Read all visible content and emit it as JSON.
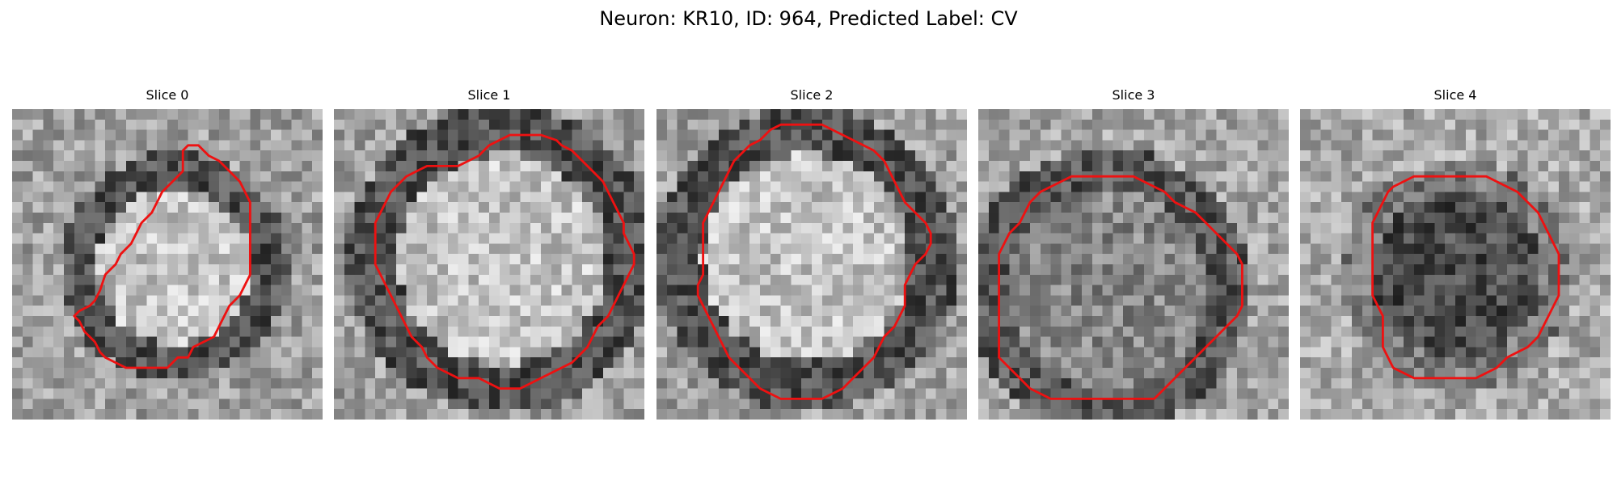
{
  "figure": {
    "title": "Neuron: KR10, ID: 964, Predicted Label: CV"
  },
  "panels": [
    {
      "title": "Slice 0",
      "brightness": "bright-center",
      "outline": [
        [
          16.5,
          4
        ],
        [
          17,
          3.5
        ],
        [
          18,
          3.5
        ],
        [
          18.5,
          4
        ],
        [
          19,
          4.5
        ],
        [
          20,
          5
        ],
        [
          21,
          6
        ],
        [
          22,
          7
        ],
        [
          22.5,
          8
        ],
        [
          23,
          9
        ],
        [
          23,
          10
        ],
        [
          23,
          11
        ],
        [
          23,
          12
        ],
        [
          23,
          13
        ],
        [
          23,
          14
        ],
        [
          23,
          15
        ],
        [
          23,
          16
        ],
        [
          22.5,
          17
        ],
        [
          22,
          18
        ],
        [
          21,
          19
        ],
        [
          20.5,
          20
        ],
        [
          20,
          21
        ],
        [
          19.5,
          22
        ],
        [
          18.5,
          22.5
        ],
        [
          17.5,
          23
        ],
        [
          17,
          24
        ],
        [
          16,
          24
        ],
        [
          15,
          25
        ],
        [
          14,
          25
        ],
        [
          13,
          25
        ],
        [
          12,
          25
        ],
        [
          11,
          25
        ],
        [
          10,
          24.5
        ],
        [
          9,
          24
        ],
        [
          8.5,
          23.5
        ],
        [
          8,
          22.5
        ],
        [
          7,
          21.5
        ],
        [
          6.5,
          20.5
        ],
        [
          6,
          20
        ],
        [
          6.5,
          19.5
        ],
        [
          7.5,
          19
        ],
        [
          8,
          18.5
        ],
        [
          8.5,
          17.5
        ],
        [
          9,
          16
        ],
        [
          10,
          15
        ],
        [
          10.5,
          14
        ],
        [
          11.5,
          13
        ],
        [
          12,
          12
        ],
        [
          12.5,
          11
        ],
        [
          13.5,
          10
        ],
        [
          14,
          9
        ],
        [
          14.5,
          8
        ],
        [
          15.5,
          7
        ],
        [
          16.5,
          6
        ],
        [
          16.5,
          5
        ]
      ],
      "seed": 11
    },
    {
      "title": "Slice 1",
      "brightness": "bright-center",
      "outline": [
        [
          17,
          2.5
        ],
        [
          18,
          2.5
        ],
        [
          19,
          2.5
        ],
        [
          20,
          2.5
        ],
        [
          21.5,
          3
        ],
        [
          22,
          3.5
        ],
        [
          23,
          4
        ],
        [
          24,
          5
        ],
        [
          25,
          6
        ],
        [
          26,
          7
        ],
        [
          26.5,
          8
        ],
        [
          27,
          9
        ],
        [
          27.5,
          10
        ],
        [
          28,
          11
        ],
        [
          28,
          12
        ],
        [
          28.5,
          13
        ],
        [
          29,
          14
        ],
        [
          29,
          15
        ],
        [
          28.5,
          16
        ],
        [
          28,
          17
        ],
        [
          27.5,
          18
        ],
        [
          27,
          19
        ],
        [
          26.5,
          20
        ],
        [
          25.5,
          21
        ],
        [
          25,
          22
        ],
        [
          24.5,
          23
        ],
        [
          23.5,
          24
        ],
        [
          23,
          24.5
        ],
        [
          22,
          25
        ],
        [
          21,
          25.5
        ],
        [
          20,
          26
        ],
        [
          19,
          26.5
        ],
        [
          18,
          27
        ],
        [
          17,
          27
        ],
        [
          16,
          27
        ],
        [
          15,
          26.5
        ],
        [
          14,
          26
        ],
        [
          13,
          26
        ],
        [
          12,
          26
        ],
        [
          11,
          25.5
        ],
        [
          10,
          25
        ],
        [
          9,
          24
        ],
        [
          8.5,
          23
        ],
        [
          7.5,
          22
        ],
        [
          7,
          21
        ],
        [
          6.5,
          20
        ],
        [
          6,
          19
        ],
        [
          5.5,
          18
        ],
        [
          5,
          17
        ],
        [
          4.5,
          16
        ],
        [
          4,
          15
        ],
        [
          4,
          14
        ],
        [
          4,
          13
        ],
        [
          4,
          12
        ],
        [
          4,
          11
        ],
        [
          4.5,
          10
        ],
        [
          5,
          9
        ],
        [
          5.5,
          8
        ],
        [
          6.5,
          7
        ],
        [
          7,
          6.5
        ],
        [
          8,
          6
        ],
        [
          9,
          5.5
        ],
        [
          10,
          5.5
        ],
        [
          11,
          5.5
        ],
        [
          12,
          5.5
        ],
        [
          13,
          5
        ],
        [
          14,
          4.5
        ],
        [
          15,
          3.5
        ],
        [
          16,
          3
        ]
      ],
      "seed": 23
    },
    {
      "title": "Slice 2",
      "brightness": "bright-center",
      "outline": [
        [
          11,
          2
        ],
        [
          12,
          1.5
        ],
        [
          13,
          1.5
        ],
        [
          14,
          1.5
        ],
        [
          15,
          1.5
        ],
        [
          16,
          1.5
        ],
        [
          17,
          2
        ],
        [
          18,
          2.5
        ],
        [
          19,
          3
        ],
        [
          20,
          3.5
        ],
        [
          21,
          4
        ],
        [
          22,
          5
        ],
        [
          22.5,
          6
        ],
        [
          23,
          7
        ],
        [
          23.5,
          8
        ],
        [
          24,
          9
        ],
        [
          25,
          10
        ],
        [
          26,
          11
        ],
        [
          26.5,
          12
        ],
        [
          26.5,
          13
        ],
        [
          26,
          14
        ],
        [
          25,
          15
        ],
        [
          24.5,
          16
        ],
        [
          24,
          17
        ],
        [
          24,
          18
        ],
        [
          24,
          19
        ],
        [
          23.5,
          20
        ],
        [
          23,
          21
        ],
        [
          22,
          22
        ],
        [
          21.5,
          23
        ],
        [
          21,
          24
        ],
        [
          20,
          25
        ],
        [
          19,
          26
        ],
        [
          18,
          27
        ],
        [
          17,
          27.5
        ],
        [
          16,
          28
        ],
        [
          15,
          28
        ],
        [
          14,
          28
        ],
        [
          13,
          28
        ],
        [
          12,
          28
        ],
        [
          11,
          27.5
        ],
        [
          10,
          27
        ],
        [
          9,
          26
        ],
        [
          8,
          25
        ],
        [
          7,
          24
        ],
        [
          6.5,
          23
        ],
        [
          6,
          22
        ],
        [
          5.5,
          21
        ],
        [
          5,
          20
        ],
        [
          4.5,
          19
        ],
        [
          4,
          18
        ],
        [
          4,
          17
        ],
        [
          4.5,
          16
        ],
        [
          4.5,
          15
        ],
        [
          4.5,
          14
        ],
        [
          4.5,
          13
        ],
        [
          4.5,
          12
        ],
        [
          4.5,
          11
        ],
        [
          5,
          10
        ],
        [
          5.5,
          9
        ],
        [
          6,
          8
        ],
        [
          6.5,
          7
        ],
        [
          7,
          6
        ],
        [
          7.5,
          5
        ],
        [
          8.5,
          4
        ],
        [
          9,
          3.5
        ],
        [
          10,
          3
        ]
      ],
      "seed": 37
    },
    {
      "title": "Slice 3",
      "brightness": "mid",
      "outline": [
        [
          9,
          6.5
        ],
        [
          10,
          6.5
        ],
        [
          11,
          6.5
        ],
        [
          12,
          6.5
        ],
        [
          13,
          6.5
        ],
        [
          14,
          6.5
        ],
        [
          15,
          6.5
        ],
        [
          16,
          7
        ],
        [
          17,
          7.5
        ],
        [
          18,
          8
        ],
        [
          19,
          9
        ],
        [
          20,
          9.5
        ],
        [
          21,
          10
        ],
        [
          22,
          11
        ],
        [
          23,
          12
        ],
        [
          24,
          13
        ],
        [
          25,
          14
        ],
        [
          25.5,
          15
        ],
        [
          25.5,
          16
        ],
        [
          25.5,
          17
        ],
        [
          25.5,
          18
        ],
        [
          25.5,
          19
        ],
        [
          25,
          20
        ],
        [
          24,
          21
        ],
        [
          23,
          22
        ],
        [
          22,
          23
        ],
        [
          21,
          24
        ],
        [
          20,
          25
        ],
        [
          19,
          26
        ],
        [
          18,
          27
        ],
        [
          17,
          28
        ],
        [
          16,
          28
        ],
        [
          15,
          28
        ],
        [
          14,
          28
        ],
        [
          13,
          28
        ],
        [
          12,
          28
        ],
        [
          11,
          28
        ],
        [
          10,
          28
        ],
        [
          9,
          28
        ],
        [
          8,
          28
        ],
        [
          7,
          28
        ],
        [
          6,
          27.5
        ],
        [
          5,
          27
        ],
        [
          4,
          26
        ],
        [
          3,
          25
        ],
        [
          2,
          24
        ],
        [
          2,
          23
        ],
        [
          2,
          22
        ],
        [
          2,
          21
        ],
        [
          2,
          20
        ],
        [
          2,
          19
        ],
        [
          2,
          18
        ],
        [
          2,
          17
        ],
        [
          2,
          16
        ],
        [
          2,
          15
        ],
        [
          2,
          14
        ],
        [
          2.5,
          13
        ],
        [
          3,
          12
        ],
        [
          4,
          11
        ],
        [
          4.5,
          10
        ],
        [
          5,
          9
        ],
        [
          6,
          8
        ],
        [
          7,
          7.5
        ],
        [
          8,
          7
        ]
      ],
      "seed": 53
    },
    {
      "title": "Slice 4",
      "brightness": "dark-center",
      "outline": [
        [
          11,
          6.5
        ],
        [
          12,
          6.5
        ],
        [
          13,
          6.5
        ],
        [
          14,
          6.5
        ],
        [
          15,
          6.5
        ],
        [
          16,
          6.5
        ],
        [
          17,
          6.5
        ],
        [
          18,
          6.5
        ],
        [
          19,
          7
        ],
        [
          20,
          7.5
        ],
        [
          21,
          8
        ],
        [
          22,
          9
        ],
        [
          23,
          10
        ],
        [
          23.5,
          11
        ],
        [
          24,
          12
        ],
        [
          24.5,
          13
        ],
        [
          25,
          14
        ],
        [
          25,
          15
        ],
        [
          25,
          16
        ],
        [
          25,
          17
        ],
        [
          25,
          18
        ],
        [
          24.5,
          19
        ],
        [
          24,
          20
        ],
        [
          23.5,
          21
        ],
        [
          23,
          22
        ],
        [
          22,
          23
        ],
        [
          21,
          23.5
        ],
        [
          20,
          24
        ],
        [
          19,
          25
        ],
        [
          18,
          25.5
        ],
        [
          17,
          26
        ],
        [
          16,
          26
        ],
        [
          15,
          26
        ],
        [
          14,
          26
        ],
        [
          13,
          26
        ],
        [
          12,
          26
        ],
        [
          11,
          26
        ],
        [
          10,
          25.5
        ],
        [
          9,
          25
        ],
        [
          8.5,
          24
        ],
        [
          8,
          23
        ],
        [
          8,
          22
        ],
        [
          8,
          21
        ],
        [
          8,
          20
        ],
        [
          7.5,
          19
        ],
        [
          7,
          18
        ],
        [
          7,
          17
        ],
        [
          7,
          16
        ],
        [
          7,
          15
        ],
        [
          7,
          14
        ],
        [
          7,
          13
        ],
        [
          7,
          12
        ],
        [
          7,
          11
        ],
        [
          7.5,
          10
        ],
        [
          8,
          9
        ],
        [
          8.5,
          8
        ],
        [
          9,
          7.5
        ],
        [
          10,
          7
        ]
      ],
      "seed": 71
    }
  ],
  "style": {
    "outline_color": "#ee1111",
    "grid": 30
  }
}
